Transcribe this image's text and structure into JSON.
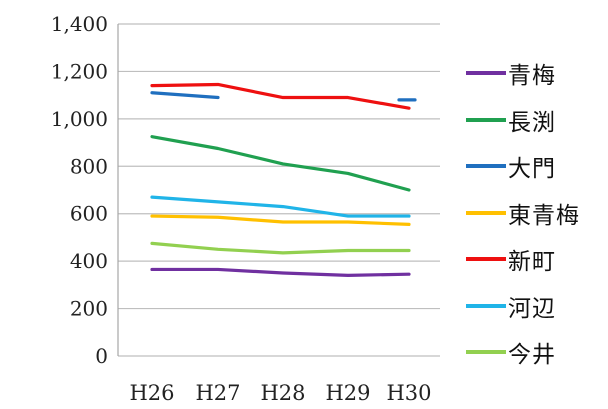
{
  "chart_data": {
    "type": "line",
    "categories": [
      "H26",
      "H27",
      "H28",
      "H29",
      "H30"
    ],
    "ylim": [
      0,
      1400
    ],
    "y_ticks": [
      "0",
      "200",
      "400",
      "600",
      "800",
      "1,000",
      "1,200",
      "1,400"
    ],
    "grid": true,
    "legend_position": "right",
    "series": [
      {
        "name": "青梅",
        "color": "#7030a0",
        "values": [
          365,
          365,
          350,
          340,
          345
        ]
      },
      {
        "name": "長渕",
        "color": "#20a050",
        "values": [
          925,
          875,
          810,
          770,
          700
        ]
      },
      {
        "name": "大門",
        "color": "#1f6fbf",
        "values": [
          1110,
          1090,
          null,
          null,
          1080
        ]
      },
      {
        "name": "東青梅",
        "color": "#ffc000",
        "values": [
          590,
          585,
          565,
          565,
          555
        ]
      },
      {
        "name": "新町",
        "color": "#ee1010",
        "values": [
          1140,
          1145,
          1090,
          1090,
          1045
        ]
      },
      {
        "name": "河辺",
        "color": "#20b4e8",
        "values": [
          670,
          650,
          630,
          590,
          590
        ]
      },
      {
        "name": "今井",
        "color": "#92d050",
        "values": [
          475,
          450,
          435,
          445,
          445
        ]
      }
    ]
  }
}
